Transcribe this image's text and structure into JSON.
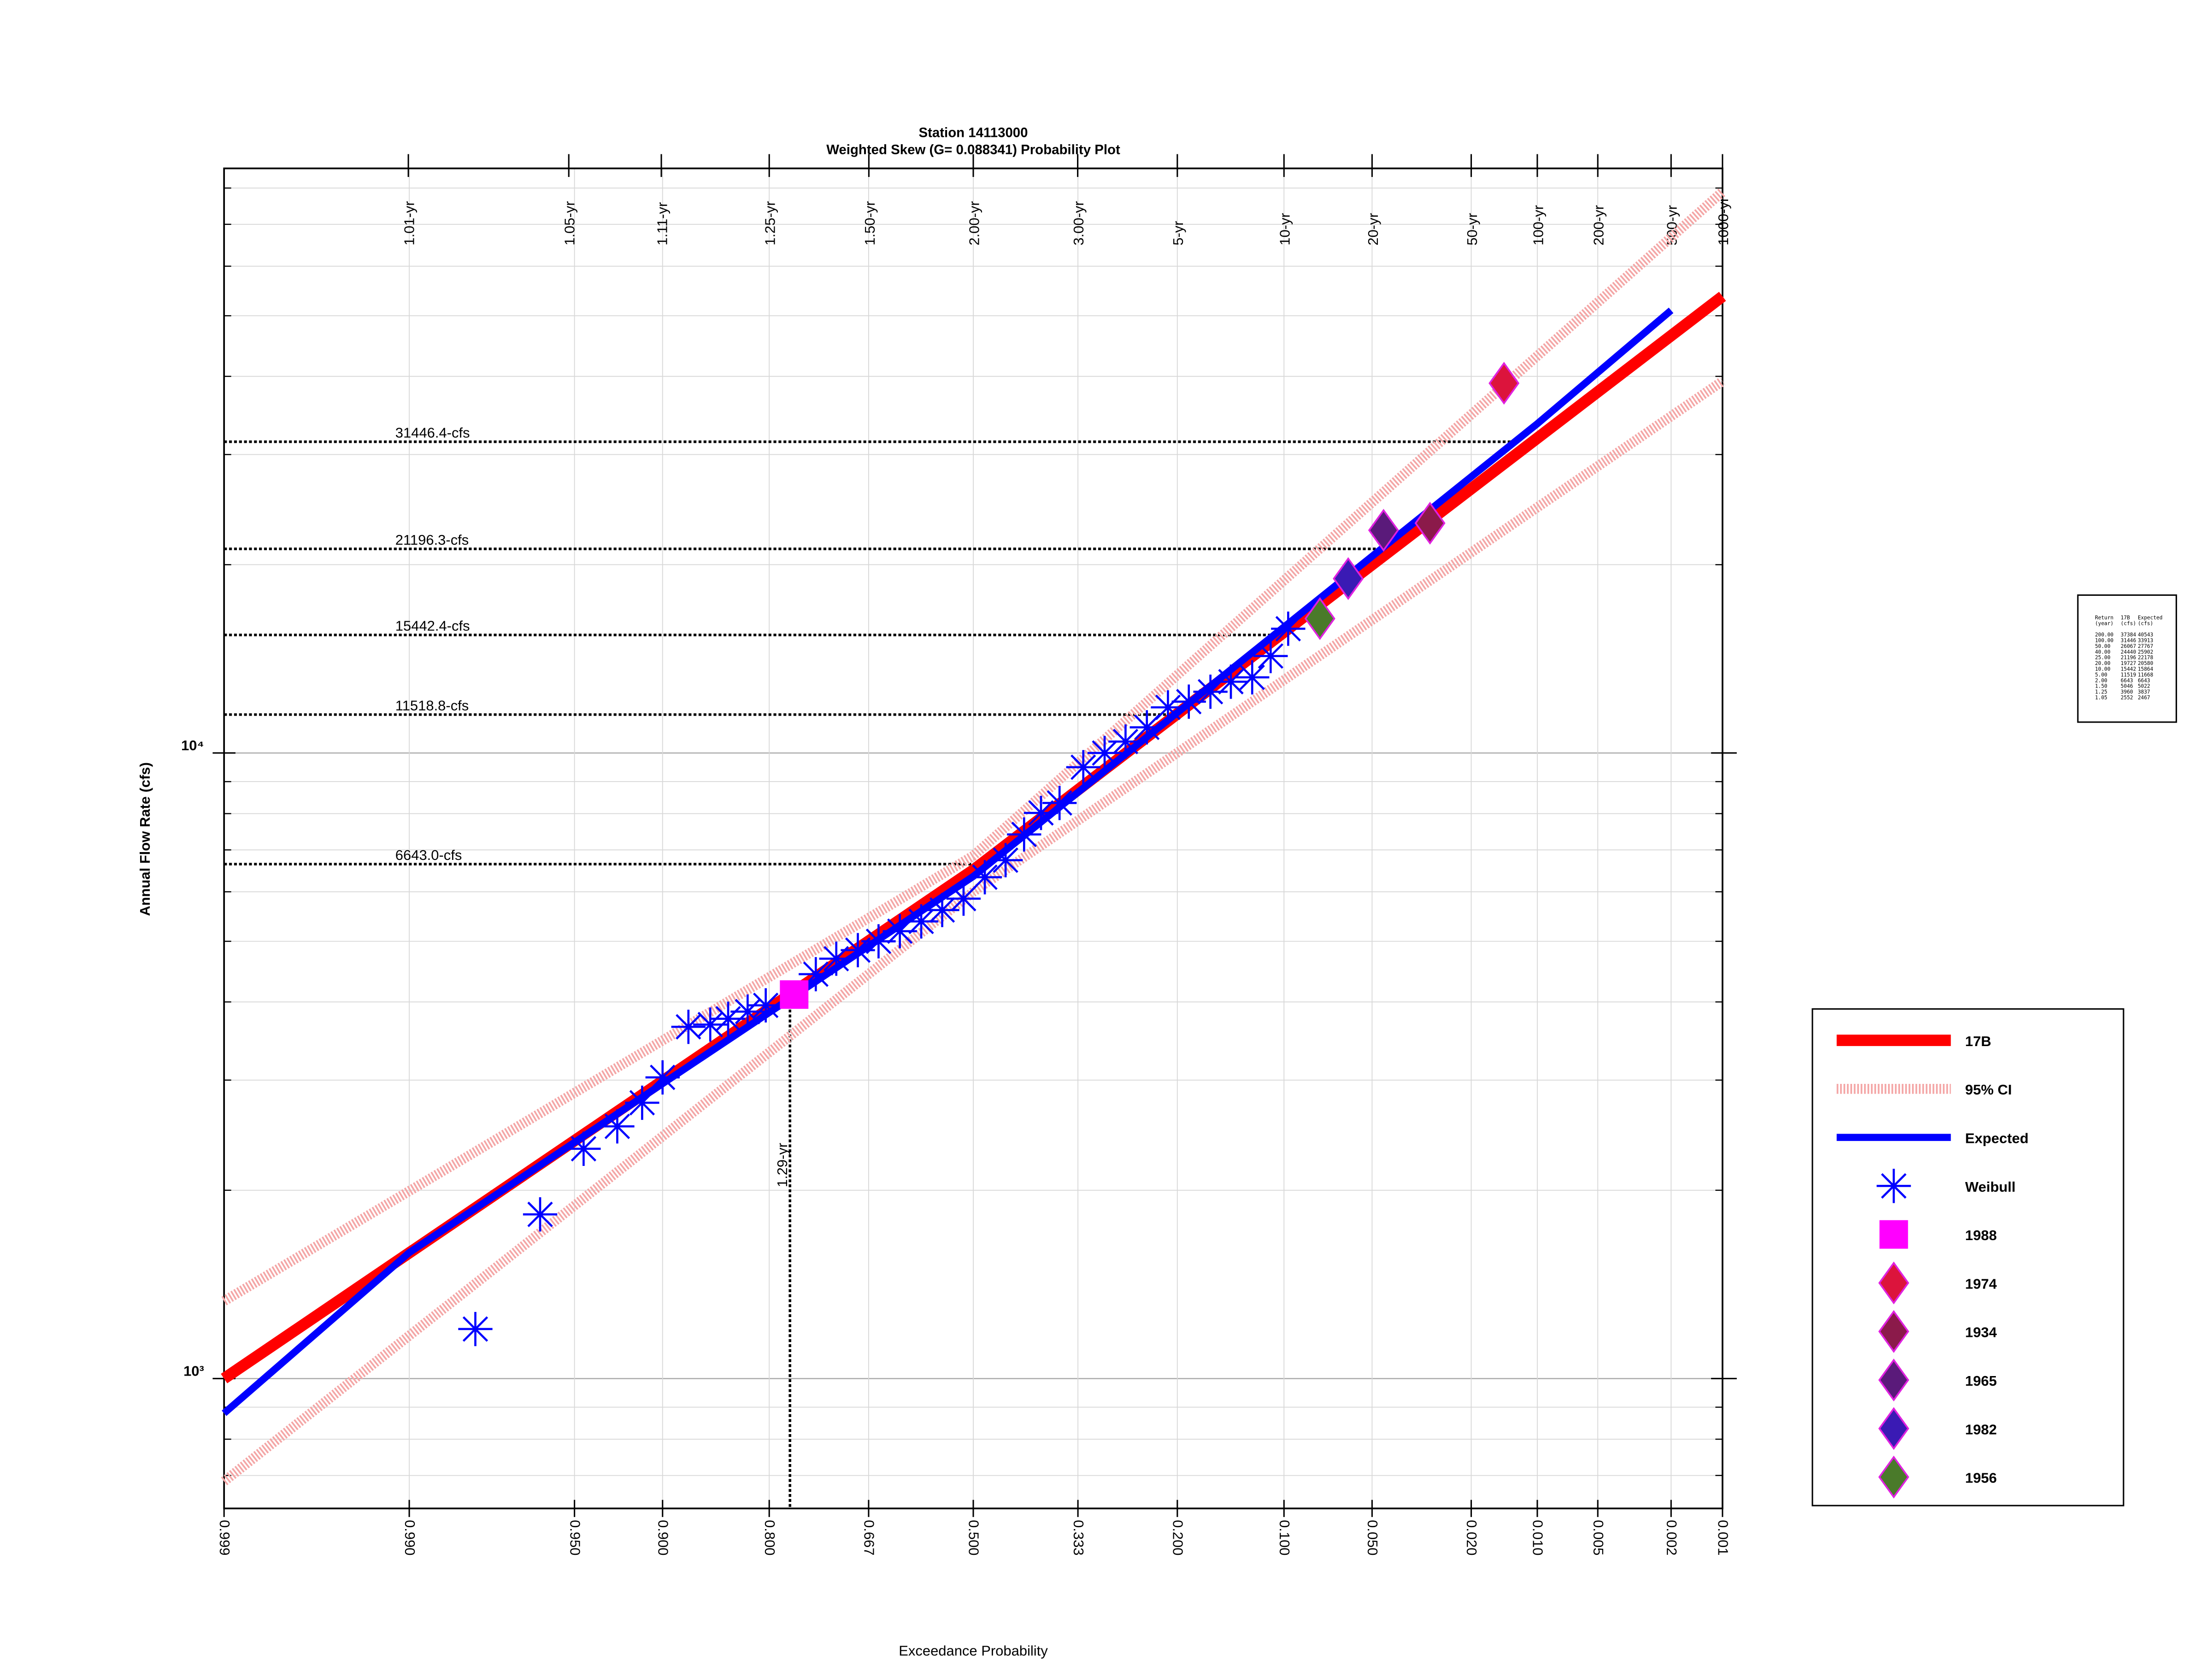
{
  "chart_data": {
    "type": "probability",
    "title": "Station 14113000",
    "subtitle": "Weighted Skew (G= 0.088341) Probability Plot",
    "x_label": "Exceedance Probability",
    "y_label": "Annual Flow Rate (cfs)",
    "log_y": true,
    "grid": true,
    "legend_position": "right",
    "xlim": [
      0.999,
      0.001
    ],
    "ylim": [
      620,
      86000
    ],
    "xticks": [
      {
        "value": 0.999,
        "label": "0.999"
      },
      {
        "value": 0.99,
        "label": "0.990"
      },
      {
        "value": 0.95,
        "label": "0.950"
      },
      {
        "value": 0.9,
        "label": "0.900"
      },
      {
        "value": 0.8,
        "label": "0.800"
      },
      {
        "value": 0.667,
        "label": "0.667"
      },
      {
        "value": 0.5,
        "label": "0.500"
      },
      {
        "value": 0.333,
        "label": "0.333"
      },
      {
        "value": 0.2,
        "label": "0.200"
      },
      {
        "value": 0.1,
        "label": "0.100"
      },
      {
        "value": 0.05,
        "label": "0.050"
      },
      {
        "value": 0.02,
        "label": "0.020"
      },
      {
        "value": 0.01,
        "label": "0.010"
      },
      {
        "value": 0.005,
        "label": "0.005"
      },
      {
        "value": 0.002,
        "label": "0.002"
      },
      {
        "value": 0.001,
        "label": "0.001"
      }
    ],
    "return_period_ticks": [
      {
        "value": 1.01,
        "label": "1.01-yr"
      },
      {
        "value": 1.05,
        "label": "1.05-yr"
      },
      {
        "value": 1.11,
        "label": "1.11-yr"
      },
      {
        "value": 1.25,
        "label": "1.25-yr"
      },
      {
        "value": 1.5,
        "label": "1.50-yr"
      },
      {
        "value": 2,
        "label": "2.00-yr"
      },
      {
        "value": 3,
        "label": "3.00-yr"
      },
      {
        "value": 5,
        "label": "5-yr"
      },
      {
        "value": 10,
        "label": "10-yr"
      },
      {
        "value": 20,
        "label": "20-yr"
      },
      {
        "value": 50,
        "label": "50-yr"
      },
      {
        "value": 100,
        "label": "100-yr"
      },
      {
        "value": 200,
        "label": "200-yr"
      },
      {
        "value": 500,
        "label": "500-yr"
      },
      {
        "value": 1000,
        "label": "1000-yr"
      }
    ],
    "yticks": [
      {
        "value": 1000,
        "label": "10³"
      },
      {
        "value": 10000,
        "label": "10⁴"
      }
    ],
    "y_minor_ticks": [
      700,
      800,
      900,
      2000,
      3000,
      4000,
      5000,
      6000,
      7000,
      8000,
      9000,
      20000,
      30000,
      40000,
      50000,
      60000,
      70000,
      80000
    ],
    "reference_lines": [
      {
        "value": 31446.4,
        "label": "31446.4-cfs"
      },
      {
        "value": 21196.3,
        "label": "21196.3-cfs"
      },
      {
        "value": 15442.4,
        "label": "15442.4-cfs"
      },
      {
        "value": 11518.8,
        "label": "11518.8-cfs"
      },
      {
        "value": 6643.0,
        "label": "6643.0-cfs"
      }
    ],
    "return_period_marker": {
      "value": 1.29,
      "label": "1.29-yr"
    },
    "series": [
      {
        "name": "17B",
        "marker": "line",
        "color": "#ff0000",
        "x": [
          0.999,
          0.5,
          0.001
        ],
        "values": [
          1000,
          6500,
          53700
        ]
      },
      {
        "name": "95% CI",
        "marker": "band",
        "color": "#f4a6a6",
        "x": [
          0.999,
          0.5,
          0.001
        ],
        "upper": [
          1330,
          6850,
          78900
        ],
        "lower": [
          685,
          6000,
          39300
        ]
      },
      {
        "name": "Expected",
        "marker": "line",
        "color": "#0000ff",
        "x": [
          0.999,
          0.99,
          0.5,
          0.01,
          0.002
        ],
        "values": [
          880,
          1590,
          6350,
          33600,
          51000
        ]
      },
      {
        "name": "Weibull",
        "marker": "asterisk",
        "color": "#0000ff",
        "x": [
          0.98,
          0.963,
          0.946,
          0.929,
          0.914,
          0.9,
          0.88,
          0.861,
          0.844,
          0.824,
          0.804,
          0.742,
          0.714,
          0.683,
          0.652,
          0.619,
          0.585,
          0.551,
          0.516,
          0.481,
          0.447,
          0.417,
          0.39,
          0.361,
          0.325,
          0.294,
          0.265,
          0.237,
          0.211,
          0.187,
          0.164,
          0.144,
          0.125,
          0.11,
          0.097
        ],
        "values": [
          1200,
          1830,
          2330,
          2530,
          2760,
          3030,
          3650,
          3680,
          3760,
          3860,
          3950,
          4430,
          4690,
          4840,
          5000,
          5190,
          5380,
          5610,
          5850,
          6330,
          6740,
          7410,
          8020,
          8320,
          9490,
          10000,
          10430,
          10990,
          11830,
          12080,
          12530,
          13000,
          13210,
          14290,
          15800
        ]
      },
      {
        "name": "1988",
        "marker": "square",
        "color": "#ff00ff",
        "x": [
          0.77
        ],
        "values": [
          4110
        ]
      },
      {
        "name": "1974",
        "marker": "diamond",
        "color": "#dc143c",
        "x": [
          0.0143
        ],
        "values": [
          39000
        ]
      },
      {
        "name": "1934",
        "marker": "diamond",
        "color": "#8b1a4a",
        "x": [
          0.0298
        ],
        "values": [
          23300
        ]
      },
      {
        "name": "1965",
        "marker": "diamond",
        "color": "#5a1a7a",
        "x": [
          0.0453
        ],
        "values": [
          22700
        ]
      },
      {
        "name": "1982",
        "marker": "diamond",
        "color": "#3a1ab4",
        "x": [
          0.061
        ],
        "values": [
          19000
        ]
      },
      {
        "name": "1956",
        "marker": "diamond",
        "color": "#4a7a2a",
        "x": [
          0.0764
        ],
        "values": [
          16400
        ]
      }
    ]
  },
  "stats_table": {
    "header": [
      [
        "Return",
        "17B",
        "Expected"
      ],
      [
        "(year)",
        "(cfs)",
        "(cfs)"
      ]
    ],
    "rows": [
      [
        "200.00",
        "37384",
        "40543"
      ],
      [
        "100.00",
        "31446",
        "33913"
      ],
      [
        "50.00",
        "26067",
        "27767"
      ],
      [
        "40.00",
        "24440",
        "25902"
      ],
      [
        "25.00",
        "21196",
        "22178"
      ],
      [
        "20.00",
        "19727",
        "20580"
      ],
      [
        "10.00",
        "15442",
        "15864"
      ],
      [
        "5.00",
        "11519",
        "11668"
      ],
      [
        "2.00",
        "6643",
        "6643"
      ],
      [
        "1.50",
        "5046",
        "5022"
      ],
      [
        "1.25",
        "3960",
        "3837"
      ],
      [
        "1.05",
        "2552",
        "2467"
      ]
    ]
  }
}
